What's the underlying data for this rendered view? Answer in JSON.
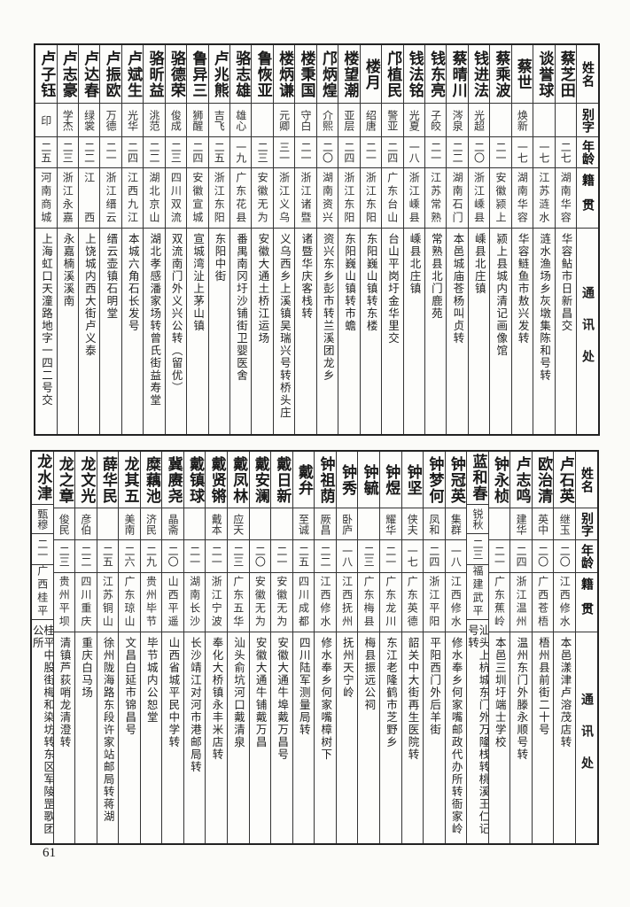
{
  "headers": {
    "name": "姓名",
    "alias": "别字",
    "age": "年龄",
    "origin": "籍贯",
    "address": "通讯处"
  },
  "tables": [
    {
      "rows": [
        {
          "name": "蔡芝田",
          "alias": "",
          "age": "二七",
          "origin": "湖南华容",
          "address": "华容鲇市日新昌交"
        },
        {
          "name": "谈誉球",
          "alias": "",
          "age": "一七",
          "origin": "江苏涟水",
          "address": "涟水渔场乡灰墩集陈和号转"
        },
        {
          "name": "蔡世",
          "alias": "焕新",
          "age": "一七",
          "origin": "湖南华容",
          "address": "华容鲢鱼市敖兴发转"
        },
        {
          "name": "蔡乘波",
          "alias": "",
          "age": "二一",
          "origin": "安徽颍上",
          "address": "颍上县城内清记画像馆"
        },
        {
          "name": "钱进法",
          "alias": "光超",
          "age": "二〇",
          "origin": "浙江嵊县",
          "address": "嵊县北庄镇"
        },
        {
          "name": "蔡晴川",
          "alias": "涔泉",
          "age": "二二",
          "origin": "湖南石门",
          "address": "本邑城庙苍杨叫贞转"
        },
        {
          "name": "钱东亮",
          "alias": "子皎",
          "age": "二一",
          "origin": "江苏常熟",
          "address": "常熟县北门鹿苑"
        },
        {
          "name": "钱法铭",
          "alias": "光夏",
          "age": "一八",
          "origin": "浙江嵊县",
          "address": "嵊县北庄镇"
        },
        {
          "name": "邝植民",
          "alias": "警亚",
          "age": "二四",
          "origin": "广东台山",
          "address": "台山平岗圩金华里交"
        },
        {
          "name": "楼月",
          "alias": "绍唐",
          "age": "二一",
          "origin": "浙江东阳",
          "address": "东阳巍山镇转东楼"
        },
        {
          "name": "楼望潮",
          "alias": "亚层",
          "age": "二四",
          "origin": "浙江东阳",
          "address": "东阳巍山镇转市蟾"
        },
        {
          "name": "邝炳煌",
          "alias": "介熙",
          "age": "二〇",
          "origin": "湖南资兴",
          "address": "资兴东乡彭市转兰溪团龙乡"
        },
        {
          "name": "楼秉国",
          "alias": "守白",
          "age": "二一",
          "origin": "浙江诸暨",
          "address": "诸暨华庆客栈转"
        },
        {
          "name": "楼炳谦",
          "alias": "元卿",
          "age": "三一",
          "origin": "浙江义乌",
          "address": "义乌西乡上溪镇吴瑞兴号转桥头庄"
        },
        {
          "name": "鲁恢亚",
          "alias": "",
          "age": "二三",
          "origin": "安徽无为",
          "address": "安徽大通土桥江运场"
        },
        {
          "name": "骆志雄",
          "alias": "雄心",
          "age": "一九",
          "origin": "广东花县",
          "address": "番禺南冈圩沙铺街卫婴医舍"
        },
        {
          "name": "卢兆熊",
          "alias": "吉飞",
          "age": "二五",
          "origin": "浙江东阳",
          "address": "东阳中街"
        },
        {
          "name": "鲁异三",
          "alias": "狮醒",
          "age": "二四",
          "origin": "安徽宣城",
          "address": "宣城湾沚上茅山镇"
        },
        {
          "name": "骆德荣",
          "alias": "俊成",
          "age": "二三",
          "origin": "四川双流",
          "address": "双流南门外义兴公转（留优）"
        },
        {
          "name": "骆昕益",
          "alias": "洮范",
          "age": "二二",
          "origin": "湖北京山",
          "address": "湖北孝感潘家场转曾氏街益寿堂"
        },
        {
          "name": "卢斌生",
          "alias": "光华",
          "age": "二四",
          "origin": "江西九江",
          "address": "本城六角石长发号"
        },
        {
          "name": "卢振欧",
          "alias": "万德",
          "age": "二一",
          "origin": "浙江缙云",
          "address": "缙云壶镇石明堂"
        },
        {
          "name": "卢达春",
          "alias": "绿裳",
          "age": "二二",
          "origin": "江　　西",
          "address": "上饶城内西大街卢义泰"
        },
        {
          "name": "卢志豪",
          "alias": "学杰",
          "age": "二三",
          "origin": "浙江永嘉",
          "address": "永嘉楠溪溪南"
        },
        {
          "name": "卢子钰",
          "alias": "印",
          "age": "二五",
          "origin": "河南商城",
          "address": "上海虹口天潼路地字一四二号交"
        }
      ]
    },
    {
      "rows": [
        {
          "name": "卢石英",
          "alias": "继玉",
          "age": "二〇",
          "origin": "江西修水",
          "address": "本邑漾津卢溶茂店转"
        },
        {
          "name": "欧治清",
          "alias": "英中",
          "age": "二〇",
          "origin": "广西苍梧",
          "address": "梧州县前街二十号"
        },
        {
          "name": "卢志鸣",
          "alias": "建华",
          "age": "二四",
          "origin": "浙江温州",
          "address": "温州东门外滕永顺号转"
        },
        {
          "name": "钟永桢",
          "alias": "",
          "age": "二一",
          "origin": "广东蕉岭",
          "address": "本邑三圳圩端士学校"
        },
        {
          "name": "蓝和春",
          "alias": "锐秋",
          "age": "二三",
          "origin": "福建武平",
          "address": "汕头上杭城东门外万隆栈转桃溪王仁记号转"
        },
        {
          "name": "钟冠英",
          "alias": "集群",
          "age": "一八",
          "origin": "江西修水",
          "address": "修水奉乡何家嘴邮政代办所转衙家岭"
        },
        {
          "name": "钟梦何",
          "alias": "凤和",
          "age": "二四",
          "origin": "浙江平阳",
          "address": "平阳西门外后羊街"
        },
        {
          "name": "钟坚",
          "alias": "侠夫",
          "age": "一七",
          "origin": "广东英德",
          "address": "韶关中大街再生医院转"
        },
        {
          "name": "钟煜",
          "alias": "耀华",
          "age": "二一",
          "origin": "广东龙川",
          "address": "东江老隆鹤市芝野乡"
        },
        {
          "name": "钟毓",
          "alias": "",
          "age": "二三",
          "origin": "广东梅县",
          "address": "梅县振远公祠"
        },
        {
          "name": "钟秀",
          "alias": "卧庐",
          "age": "一八",
          "origin": "江西抚州",
          "address": "抚州天宁岭"
        },
        {
          "name": "钟祖荫",
          "alias": "厥昌",
          "age": "二二",
          "origin": "江西修水",
          "address": "修水奉乡何家嘴樟树下"
        },
        {
          "name": "戴弁",
          "alias": "至诚",
          "age": "二五",
          "origin": "四川成都",
          "address": "四川陆军测量局转"
        },
        {
          "name": "戴日新",
          "alias": "",
          "age": "二一",
          "origin": "安徽无为",
          "address": "安徽大通牛埠戴万昌号"
        },
        {
          "name": "戴安澜",
          "alias": "",
          "age": "二〇",
          "origin": "安徽无为",
          "address": "安徽大通牛铺戴万昌"
        },
        {
          "name": "戴凤林",
          "alias": "应天",
          "age": "二三",
          "origin": "广东五华",
          "address": "汕头俞坑河口戴清泉"
        },
        {
          "name": "戴贤锵",
          "alias": "戴本",
          "age": "二一",
          "origin": "浙江宁波",
          "address": "奉化大桥镇永丰米店转"
        },
        {
          "name": "戴镇球",
          "alias": "",
          "age": "二一",
          "origin": "湖南长沙",
          "address": "长沙靖江对河市港邮局转"
        },
        {
          "name": "冀赓尧",
          "alias": "晶斋",
          "age": "二〇",
          "origin": "山西平遥",
          "address": "山西省城平民中学转"
        },
        {
          "name": "糜藕池",
          "alias": "济民",
          "age": "二九",
          "origin": "贵州毕节",
          "address": "毕节城内公恕堂"
        },
        {
          "name": "龙其五",
          "alias": "美南",
          "age": "二六",
          "origin": "广东琼山",
          "address": "文昌白延市锦昌号"
        },
        {
          "name": "薛华民",
          "alias": "",
          "age": "二五",
          "origin": "江苏铜山",
          "address": "徐州陇海路东段许家站邮局转蒋湖"
        },
        {
          "name": "龙文光",
          "alias": "彦伯",
          "age": "二二",
          "origin": "四川重庆",
          "address": "重庆白马场"
        },
        {
          "name": "龙之章",
          "alias": "俊民",
          "age": "二三",
          "origin": "贵州平坝",
          "address": "清镇芦荻哨龙清澄转"
        },
        {
          "name": "龙水津",
          "alias": "甄穆",
          "age": "二一",
          "origin": "广西桂平",
          "address": "桂平中股街梅和染坊转东区军陵罡歌团公所"
        }
      ]
    }
  ],
  "page_number": "61"
}
